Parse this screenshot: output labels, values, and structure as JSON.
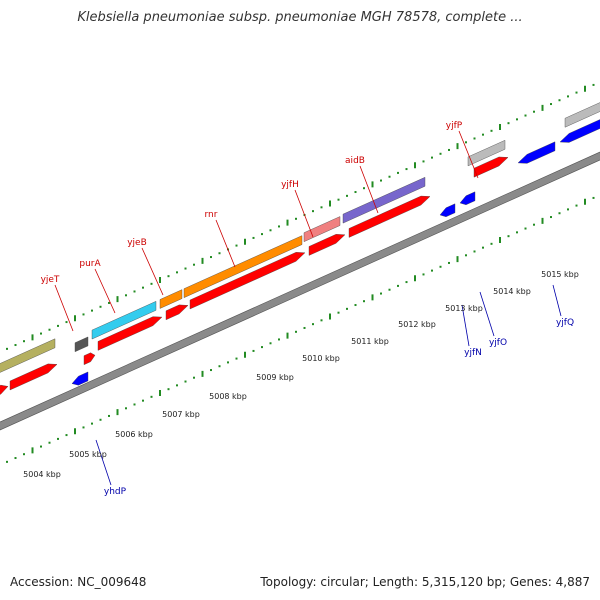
{
  "title": "Klebsiella pneumoniae subsp. pneumoniae MGH 78578, complete ...",
  "footer": {
    "accession": "Accession: NC_009648",
    "summary": "Topology: circular; Length: 5,315,120 bp; Genes: 4,887"
  },
  "scale_labels": [
    "5004 kbp",
    "5005 kbp",
    "5006 kbp",
    "5007 kbp",
    "5008 kbp",
    "5009 kbp",
    "5010 kbp",
    "5011 kbp",
    "5012 kbp",
    "5013 kbp",
    "5014 kbp",
    "5015 kbp"
  ],
  "forward_gene_labels": [
    "yjeT",
    "purA",
    "yjeB",
    "rnr",
    "yjfH",
    "aidB",
    "yjfP"
  ],
  "reverse_gene_labels": [
    "yhdP",
    "yjfN",
    "yjfO",
    "yjfQ"
  ],
  "colors": {
    "forward_label": "#cc0000",
    "reverse_label": "#0000aa",
    "cds_forward": "#ff0000",
    "cds_reverse": "#0000ff",
    "backbone": "#888888",
    "ticks": "#228b22"
  }
}
